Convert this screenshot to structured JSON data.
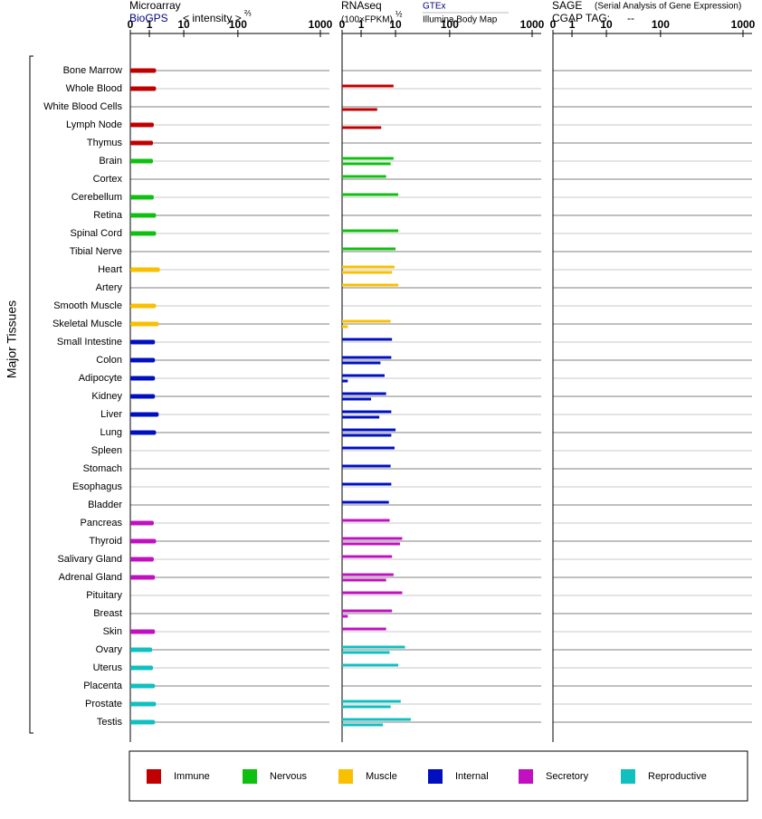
{
  "chart_data": {
    "type": "bar",
    "y_label": "Major Tissues",
    "categories": [
      "Bone Marrow",
      "Whole Blood",
      "White Blood Cells",
      "Lymph Node",
      "Thymus",
      "Brain",
      "Cortex",
      "Cerebellum",
      "Retina",
      "Spinal Cord",
      "Tibial Nerve",
      "Heart",
      "Artery",
      "Smooth Muscle",
      "Skeletal Muscle",
      "Small Intestine",
      "Colon",
      "Adipocyte",
      "Kidney",
      "Liver",
      "Lung",
      "Spleen",
      "Stomach",
      "Esophagus",
      "Bladder",
      "Pancreas",
      "Thyroid",
      "Salivary Gland",
      "Adrenal Gland",
      "Pituitary",
      "Breast",
      "Skin",
      "Ovary",
      "Uterus",
      "Placenta",
      "Prostate",
      "Testis"
    ],
    "category_colors": [
      "#c00000",
      "#c00000",
      "#c00000",
      "#c00000",
      "#c00000",
      "#10c010",
      "#10c010",
      "#10c010",
      "#10c010",
      "#10c010",
      "#10c010",
      "#f8c000",
      "#f8c000",
      "#f8c000",
      "#f8c000",
      "#0010c0",
      "#0010c0",
      "#0010c0",
      "#0010c0",
      "#0010c0",
      "#0010c0",
      "#0010c0",
      "#0010c0",
      "#0010c0",
      "#0010c0",
      "#c010c0",
      "#c010c0",
      "#c010c0",
      "#c010c0",
      "#c010c0",
      "#c010c0",
      "#c010c0",
      "#10c0c0",
      "#10c0c0",
      "#10c0c0",
      "#10c0c0",
      "#10c0c0"
    ],
    "legend": [
      {
        "name": "Immune",
        "color": "#c00000"
      },
      {
        "name": "Nervous",
        "color": "#10c010"
      },
      {
        "name": "Muscle",
        "color": "#f8c000"
      },
      {
        "name": "Internal",
        "color": "#0010c0"
      },
      {
        "name": "Secretory",
        "color": "#c010c0"
      },
      {
        "name": "Reproductive",
        "color": "#10c0c0"
      }
    ],
    "panels": [
      {
        "title": "Microarray",
        "unit": "< intensity >",
        "unit_exponent": "⅔",
        "xlim": [
          0,
          1000
        ],
        "xticks": [
          0,
          1,
          10,
          100,
          1000
        ],
        "series": [
          {
            "name": "BioGPS",
            "values": [
              1.8,
              1.8,
              null,
              1.5,
              1.4,
              1.4,
              null,
              1.5,
              1.8,
              1.8,
              null,
              2.4,
              null,
              1.8,
              2.2,
              1.65,
              1.65,
              1.65,
              1.65,
              2.2,
              1.8,
              null,
              null,
              null,
              null,
              1.5,
              1.8,
              1.5,
              1.65,
              null,
              null,
              1.65,
              1.3,
              1.4,
              1.65,
              1.8,
              1.65
            ]
          }
        ]
      },
      {
        "title": "RNAseq",
        "unit": "(100×FPKM)",
        "unit_exponent": "½",
        "xlim": [
          0,
          1000
        ],
        "xticks": [
          0,
          1,
          10,
          100,
          1000
        ],
        "series": [
          {
            "name": "GTEx",
            "values": [
              null,
              9,
              null,
              null,
              null,
              9,
              6,
              11.5,
              null,
              11.5,
              10,
              9.5,
              11.5,
              null,
              7.7,
              8.3,
              8,
              5.5,
              6,
              8,
              10,
              9.5,
              7.7,
              8,
              7,
              7.3,
              14,
              8.3,
              9,
              14,
              8.3,
              6,
              16,
              11.5,
              null,
              13,
              21
            ]
          },
          {
            "name": "Illumina Body Map",
            "values": [
              null,
              null,
              3.5,
              4.5,
              null,
              7.7,
              null,
              null,
              null,
              null,
              null,
              8.3,
              null,
              null,
              0.1,
              null,
              4.3,
              0.1,
              2.3,
              4,
              8,
              null,
              null,
              null,
              null,
              null,
              12.5,
              null,
              6,
              null,
              0.1,
              null,
              7.3,
              null,
              null,
              7.7,
              5
            ]
          }
        ]
      },
      {
        "title": "SAGE",
        "subtitle": "(Serial Analysis of Gene Expression)",
        "tag_label": "CGAP TAG:",
        "tag": "--",
        "xlim": [
          0,
          1000
        ],
        "xticks": [
          0,
          1,
          10,
          100,
          1000
        ],
        "series": []
      }
    ]
  }
}
